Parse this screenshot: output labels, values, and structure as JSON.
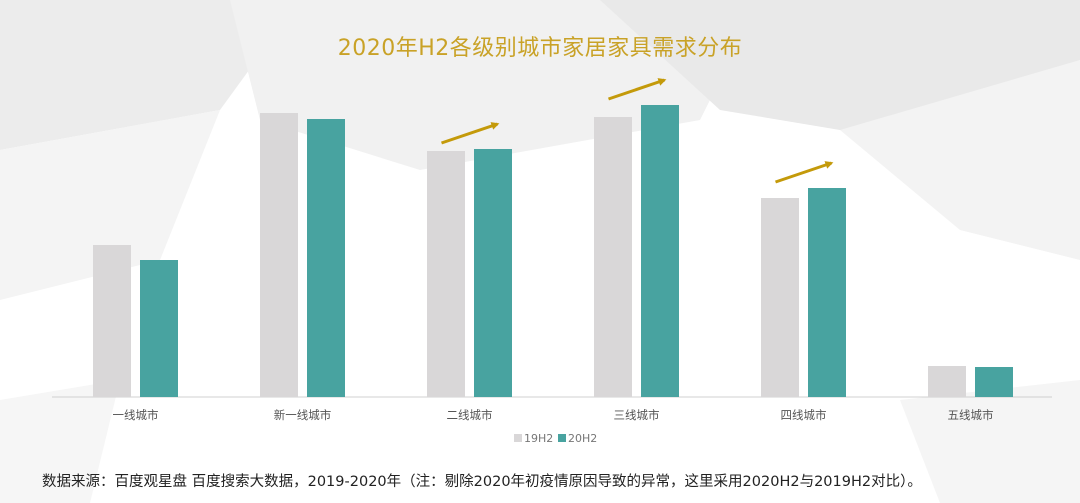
{
  "colors": {
    "series_19h2": "#d9d7d8",
    "series_20h2": "#48a3a0",
    "title": "#c9a227",
    "arrow": "#c49a0a"
  },
  "chart_data": {
    "type": "bar",
    "title": "2020年H2各级别城市家居家具需求分布",
    "categories": [
      "一线城市",
      "新一线城市",
      "二线城市",
      "三线城市",
      "四线城市",
      "五线城市"
    ],
    "series": [
      {
        "name": "19H2",
        "values": [
          152,
          284,
          246,
          280,
          199,
          31
        ]
      },
      {
        "name": "20H2",
        "values": [
          137,
          278,
          248,
          292,
          209,
          30
        ]
      }
    ],
    "ylim": [
      0,
      300
    ],
    "grid": false,
    "legend": "bottom-center",
    "annotations": [
      {
        "type": "up-arrow",
        "category": "二线城市"
      },
      {
        "type": "up-arrow",
        "category": "三线城市"
      },
      {
        "type": "up-arrow",
        "category": "四线城市"
      }
    ]
  },
  "footnote": "数据来源：百度观星盘  百度搜索大数据，2019-2020年（注：剔除2020年初疫情原因导致的异常，这里采用2020H2与2019H2对比）。"
}
